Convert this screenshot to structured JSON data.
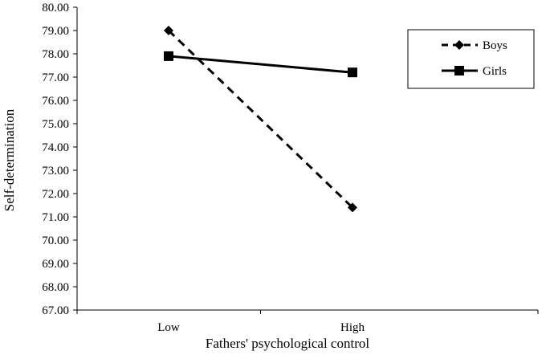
{
  "chart_data": {
    "type": "line",
    "categories": [
      "Low",
      "High"
    ],
    "series": [
      {
        "name": "Boys",
        "values": [
          79.0,
          71.4
        ],
        "line_style": "dashed",
        "marker": "diamond",
        "color": "#000000"
      },
      {
        "name": "Girls",
        "values": [
          77.9,
          77.2
        ],
        "line_style": "solid",
        "marker": "square",
        "color": "#000000"
      }
    ],
    "title": "",
    "xlabel": "Fathers' psychological control",
    "ylabel": "Self-determination",
    "ylim": [
      67,
      80
    ],
    "yticks": [
      "67.00",
      "68.00",
      "69.00",
      "70.00",
      "71.00",
      "72.00",
      "73.00",
      "74.00",
      "75.00",
      "76.00",
      "77.00",
      "78.00",
      "79.00",
      "80.00"
    ],
    "grid": false,
    "legend_position": "top-right"
  }
}
